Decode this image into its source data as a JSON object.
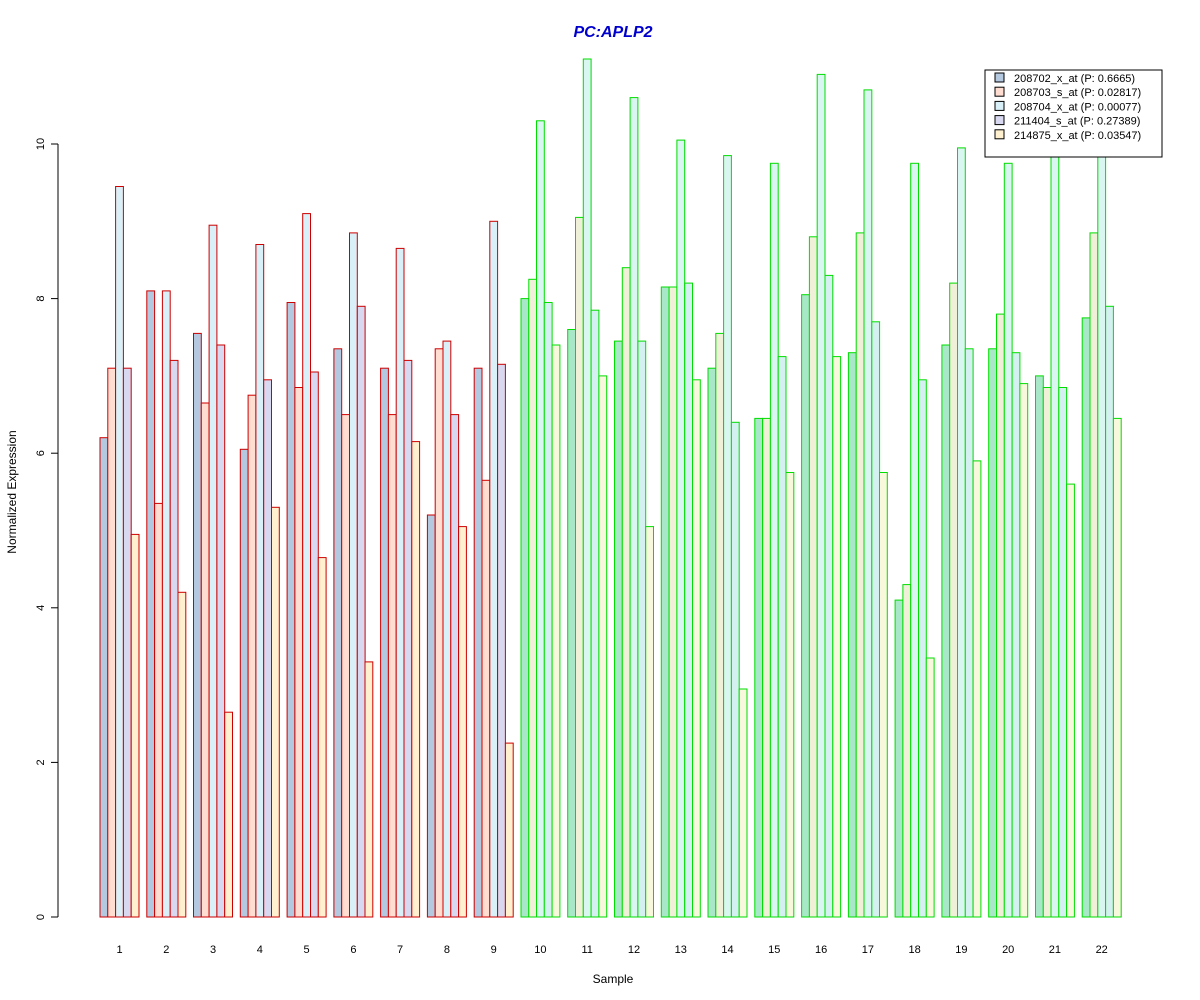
{
  "chart_data": {
    "type": "bar",
    "title": "PC:APLP2",
    "xlabel": "Sample",
    "ylabel": "Normalized Expression",
    "ylim": [
      0,
      11.2
    ],
    "yticks": [
      0,
      2,
      4,
      6,
      8,
      10
    ],
    "grid": false,
    "legend_position": "top-right",
    "categories": [
      "1",
      "2",
      "3",
      "4",
      "5",
      "6",
      "7",
      "8",
      "9",
      "10",
      "11",
      "12",
      "13",
      "14",
      "15",
      "16",
      "17",
      "18",
      "19",
      "20",
      "21",
      "22"
    ],
    "series": [
      {
        "name": "208702_x_at (P: 0.6665)",
        "values": [
          6.2,
          8.1,
          7.55,
          6.05,
          7.95,
          7.35,
          7.1,
          5.2,
          7.1,
          8.0,
          7.6,
          7.45,
          8.15,
          7.1,
          6.45,
          8.05,
          7.3,
          4.1,
          7.4,
          7.35,
          7.0,
          7.75
        ]
      },
      {
        "name": "208703_s_at (P: 0.02817)",
        "values": [
          7.1,
          5.35,
          6.65,
          6.75,
          6.85,
          6.5,
          6.5,
          7.35,
          5.65,
          8.25,
          9.05,
          8.4,
          8.15,
          7.55,
          6.45,
          8.8,
          8.85,
          4.3,
          8.2,
          7.8,
          6.85,
          8.85
        ]
      },
      {
        "name": "208704_x_at (P: 0.00077)",
        "values": [
          9.45,
          8.1,
          8.95,
          8.7,
          9.1,
          8.85,
          8.65,
          7.45,
          9.0,
          10.3,
          11.1,
          10.6,
          10.05,
          9.85,
          9.75,
          10.9,
          10.7,
          9.75,
          9.95,
          9.75,
          9.85,
          9.85
        ]
      },
      {
        "name": "211404_s_at (P: 0.27389)",
        "values": [
          7.1,
          7.2,
          7.4,
          6.95,
          7.05,
          7.9,
          7.2,
          6.5,
          7.15,
          7.95,
          7.85,
          7.45,
          8.2,
          6.4,
          7.25,
          8.3,
          7.7,
          6.95,
          7.35,
          7.3,
          6.85,
          7.9
        ]
      },
      {
        "name": "214875_x_at (P: 0.03547)",
        "values": [
          4.95,
          4.2,
          2.65,
          5.3,
          4.65,
          3.3,
          6.15,
          5.05,
          2.25,
          7.4,
          7.0,
          5.05,
          6.95,
          2.95,
          5.75,
          7.25,
          5.75,
          3.35,
          5.9,
          6.9,
          5.6,
          6.45
        ]
      }
    ],
    "series_fill_colors": [
      "#b4c8e0",
      "#ffddd0",
      "#daf0f8",
      "#d8d8f0",
      "#fff0d0"
    ],
    "group_fill_colors_green": [
      "#a8e8c8",
      "#f0f0d8",
      "#daf6f0",
      "#d4f0f0",
      "#f8f8dc"
    ],
    "sample_groups": [
      {
        "samples": [
          1,
          2,
          3,
          4,
          5,
          6,
          7,
          8,
          9
        ],
        "border_color": "#cc0000"
      },
      {
        "samples": [
          10,
          11,
          12,
          13,
          14,
          15,
          16,
          17,
          18,
          19,
          20,
          21,
          22
        ],
        "border_color": "#00dd00"
      }
    ],
    "title_color": "#0000cc"
  }
}
